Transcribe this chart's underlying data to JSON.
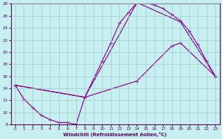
{
  "xlabel": "Windchill (Refroidissement éolien,°C)",
  "xlim": [
    -0.5,
    23.5
  ],
  "ylim": [
    8,
    28
  ],
  "yticks": [
    8,
    10,
    12,
    14,
    16,
    18,
    20,
    22,
    24,
    26,
    28
  ],
  "xticks": [
    0,
    1,
    2,
    3,
    4,
    5,
    6,
    7,
    8,
    9,
    10,
    11,
    12,
    13,
    14,
    15,
    16,
    17,
    18,
    19,
    20,
    21,
    22,
    23
  ],
  "background_color": "#c8eff0",
  "grid_color": "#a0c8c8",
  "line_color": "#880088",
  "line1_x": [
    0,
    1,
    2,
    3,
    4,
    5,
    6,
    7,
    8,
    9,
    10,
    11,
    12,
    13,
    14,
    15,
    16,
    17,
    18,
    19,
    20,
    21,
    22,
    23
  ],
  "line1_y": [
    14.5,
    12.2,
    10.8,
    9.5,
    8.8,
    8.3,
    8.3,
    8.0,
    12.5,
    15.5,
    18.5,
    21.5,
    24.8,
    26.5,
    28.2,
    28.2,
    27.8,
    27.2,
    26.2,
    25.2,
    23.5,
    21.2,
    18.5,
    16.0
  ],
  "line2_x": [
    0,
    8,
    14,
    19,
    23
  ],
  "line2_y": [
    14.5,
    12.5,
    28.2,
    25.0,
    16.0
  ],
  "line3_x": [
    0,
    8,
    14,
    18,
    19,
    23
  ],
  "line3_y": [
    14.5,
    12.5,
    15.2,
    21.0,
    21.5,
    16.0
  ]
}
